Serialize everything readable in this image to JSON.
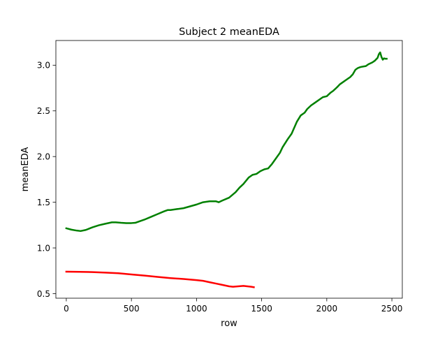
{
  "chart_data": {
    "type": "line",
    "title": "Subject 2 meanEDA",
    "xlabel": "row",
    "ylabel": "meanEDA",
    "xlim": [
      -80,
      2580
    ],
    "ylim": [
      0.45,
      3.27
    ],
    "grid": false,
    "legend": "none",
    "xticks": [
      0,
      500,
      1000,
      1500,
      2000,
      2500
    ],
    "xtick_labels": [
      "0",
      "500",
      "1000",
      "1500",
      "2000",
      "2500"
    ],
    "yticks": [
      0.5,
      1.0,
      1.5,
      2.0,
      2.5,
      3.0
    ],
    "ytick_labels": [
      "0.5",
      "1.0",
      "1.5",
      "2.0",
      "2.5",
      "3.0"
    ],
    "series": [
      {
        "color": "#008000",
        "x": [
          0,
          40,
          80,
          110,
          150,
          200,
          250,
          300,
          350,
          380,
          420,
          460,
          500,
          530,
          560,
          600,
          650,
          700,
          750,
          780,
          800,
          850,
          900,
          950,
          1000,
          1050,
          1100,
          1120,
          1150,
          1170,
          1200,
          1250,
          1300,
          1330,
          1360,
          1400,
          1430,
          1460,
          1490,
          1520,
          1550,
          1580,
          1600,
          1640,
          1660,
          1700,
          1730,
          1770,
          1800,
          1830,
          1850,
          1880,
          1900,
          1920,
          1950,
          1970,
          2000,
          2030,
          2050,
          2080,
          2100,
          2120,
          2150,
          2180,
          2200,
          2220,
          2240,
          2260,
          2280,
          2300,
          2320,
          2350,
          2370,
          2390,
          2400,
          2410,
          2420,
          2430,
          2440,
          2450,
          2460
        ],
        "values": [
          1.215,
          1.2,
          1.19,
          1.185,
          1.197,
          1.225,
          1.248,
          1.265,
          1.28,
          1.28,
          1.275,
          1.272,
          1.272,
          1.275,
          1.29,
          1.31,
          1.34,
          1.37,
          1.4,
          1.415,
          1.415,
          1.425,
          1.435,
          1.455,
          1.475,
          1.5,
          1.51,
          1.51,
          1.51,
          1.5,
          1.52,
          1.55,
          1.61,
          1.66,
          1.7,
          1.77,
          1.8,
          1.81,
          1.84,
          1.86,
          1.87,
          1.92,
          1.96,
          2.04,
          2.1,
          2.19,
          2.25,
          2.38,
          2.45,
          2.48,
          2.52,
          2.56,
          2.58,
          2.6,
          2.63,
          2.65,
          2.66,
          2.7,
          2.72,
          2.76,
          2.79,
          2.81,
          2.84,
          2.87,
          2.9,
          2.95,
          2.97,
          2.98,
          2.985,
          2.99,
          3.01,
          3.03,
          3.05,
          3.08,
          3.12,
          3.14,
          3.09,
          3.06,
          3.075,
          3.07,
          3.07
        ]
      },
      {
        "color": "#ff0000",
        "x": [
          0,
          100,
          200,
          300,
          400,
          500,
          600,
          700,
          800,
          900,
          1000,
          1050,
          1100,
          1150,
          1200,
          1250,
          1280,
          1320,
          1360,
          1390,
          1420,
          1440
        ],
        "values": [
          0.74,
          0.738,
          0.736,
          0.73,
          0.723,
          0.71,
          0.697,
          0.683,
          0.67,
          0.66,
          0.648,
          0.64,
          0.625,
          0.61,
          0.595,
          0.58,
          0.575,
          0.58,
          0.585,
          0.58,
          0.575,
          0.57
        ]
      }
    ]
  }
}
